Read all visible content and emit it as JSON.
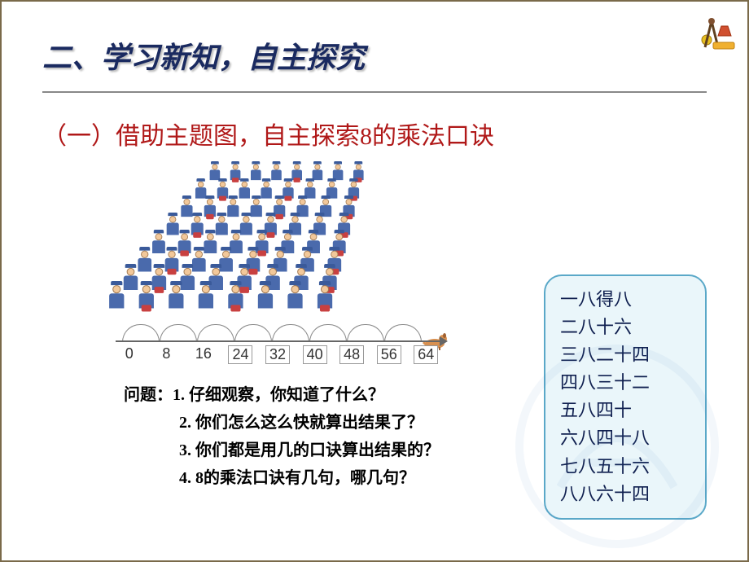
{
  "title": "二、学习新知，自主探究",
  "subtitle": "（一）借助主题图，自主探索8的乘法口诀",
  "number_line": {
    "values": [
      0,
      8,
      16,
      24,
      32,
      40,
      48,
      56,
      64
    ],
    "boxed_from_index": 3,
    "arc_count": 8,
    "arc_width": 46,
    "arc_color": "#888888"
  },
  "band": {
    "rows": 8,
    "cols": 8,
    "jacket_color": "#4a6aac",
    "hat_color": "#3a5a9a",
    "drum_color": "#c84040",
    "skin_color": "#f2c89a"
  },
  "questions": {
    "label": "问题：",
    "items": [
      "1. 仔细观察，你知道了什么？",
      "2. 你们怎么这么快就算出结果了？",
      "3. 你们都是用几的口诀算出结果的？",
      "4. 8的乘法口诀有几句，哪几句？"
    ]
  },
  "koujue": [
    "一八得八",
    "二八十六",
    "三八二十四",
    "四八三十二",
    "五八四十",
    "六八四十八",
    "七八五十六",
    "八八六十四"
  ],
  "colors": {
    "title": "#1a2a60",
    "subtitle": "#b01818",
    "koujue_border": "#5aa8c8",
    "koujue_bg": "#eaf6fa",
    "frame": "#7a6a4a"
  }
}
